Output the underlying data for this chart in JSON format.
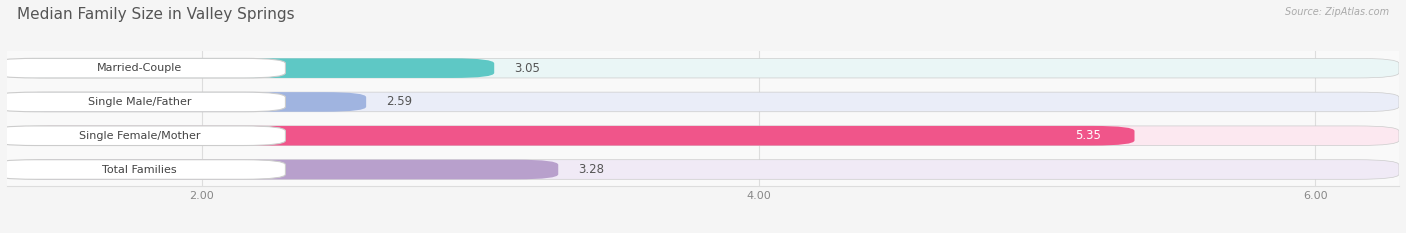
{
  "title": "Median Family Size in Valley Springs",
  "source": "Source: ZipAtlas.com",
  "categories": [
    "Married-Couple",
    "Single Male/Father",
    "Single Female/Mother",
    "Total Families"
  ],
  "values": [
    3.05,
    2.59,
    5.35,
    3.28
  ],
  "bar_colors": [
    "#5ec8c5",
    "#a0b4e0",
    "#f0558a",
    "#b8a0cc"
  ],
  "bar_bg_colors": [
    "#eaf6f6",
    "#eaedf8",
    "#fce8f0",
    "#f0eaf6"
  ],
  "xlim_min": 1.3,
  "xlim_max": 6.3,
  "xticks": [
    2.0,
    4.0,
    6.0
  ],
  "xlabel_fontsize": 8,
  "title_fontsize": 11,
  "value_fontsize": 8.5,
  "label_fontsize": 8,
  "bar_height": 0.58,
  "background_color": "#f5f5f5",
  "plot_bg_color": "#f9f9f9",
  "title_color": "#555555",
  "grid_color": "#dddddd",
  "value_color_normal": "#555555",
  "value_color_white": "#ffffff"
}
